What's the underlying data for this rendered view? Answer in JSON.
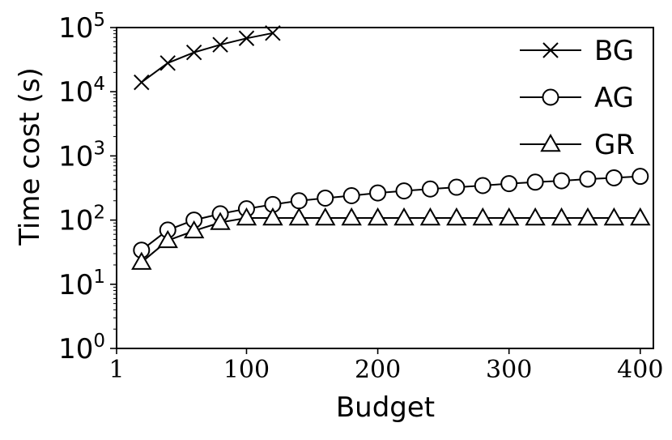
{
  "chart_data": {
    "type": "line",
    "xlabel": "Budget",
    "ylabel": "Time cost (s)",
    "xlim": [
      1,
      410
    ],
    "ylim": [
      1,
      100000
    ],
    "yscale": "log",
    "grid": false,
    "legend_position": "top-right",
    "xticks": [
      1,
      100,
      200,
      300,
      400
    ],
    "xtick_labels": [
      "1",
      "100",
      "200",
      "300",
      "400"
    ],
    "yticks": [
      1,
      10,
      100,
      1000,
      10000,
      100000
    ],
    "ytick_labels": [
      {
        "base": "10",
        "exp": "0"
      },
      {
        "base": "10",
        "exp": "1"
      },
      {
        "base": "10",
        "exp": "2"
      },
      {
        "base": "10",
        "exp": "3"
      },
      {
        "base": "10",
        "exp": "4"
      },
      {
        "base": "10",
        "exp": "5"
      }
    ],
    "series": [
      {
        "name": "BG",
        "marker": "x",
        "x": [
          20,
          40,
          60,
          80,
          100,
          120
        ],
        "y": [
          14000,
          28000,
          41000,
          54000,
          68000,
          82000
        ]
      },
      {
        "name": "AG",
        "marker": "circle",
        "x": [
          20,
          40,
          60,
          80,
          100,
          120,
          140,
          160,
          180,
          200,
          220,
          240,
          260,
          280,
          300,
          320,
          340,
          360,
          380,
          400
        ],
        "y": [
          34,
          70,
          100,
          125,
          150,
          175,
          200,
          220,
          240,
          265,
          285,
          305,
          325,
          345,
          370,
          390,
          410,
          435,
          455,
          480
        ]
      },
      {
        "name": "GR",
        "marker": "triangle",
        "x": [
          20,
          40,
          60,
          80,
          100,
          120,
          140,
          160,
          180,
          200,
          220,
          240,
          260,
          280,
          300,
          320,
          340,
          360,
          380,
          400
        ],
        "y": [
          22,
          48,
          68,
          92,
          108,
          108,
          108,
          108,
          108,
          108,
          108,
          108,
          108,
          108,
          108,
          108,
          108,
          108,
          108,
          108
        ]
      }
    ]
  }
}
